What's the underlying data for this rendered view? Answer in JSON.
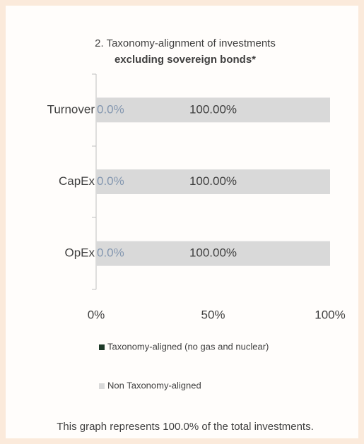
{
  "chart_data": {
    "type": "stacked-bar-horizontal",
    "title": "2. Taxonomy-alignment of investments",
    "subtitle": "excluding sovereign bonds*",
    "categories": [
      "Turnover",
      "CapEx",
      "OpEx"
    ],
    "series": [
      {
        "name": "Taxonomy-aligned (no gas and nuclear)",
        "color": "#1e3a28",
        "values": [
          0,
          0,
          0
        ],
        "value_labels": [
          "0.0%",
          "0.0%",
          "0.0%"
        ]
      },
      {
        "name": "Non Taxonomy-aligned",
        "color": "#d9d9d9",
        "values": [
          100,
          100,
          100
        ],
        "value_labels": [
          "100.00%",
          "100.00%",
          "100.00%"
        ]
      }
    ],
    "xlim": [
      0,
      100
    ],
    "xticks": [
      {
        "value": 0,
        "label": "0%"
      },
      {
        "value": 50,
        "label": "50%"
      },
      {
        "value": 100,
        "label": "100%"
      }
    ],
    "note": "This graph represents 100.0% of the total investments."
  }
}
